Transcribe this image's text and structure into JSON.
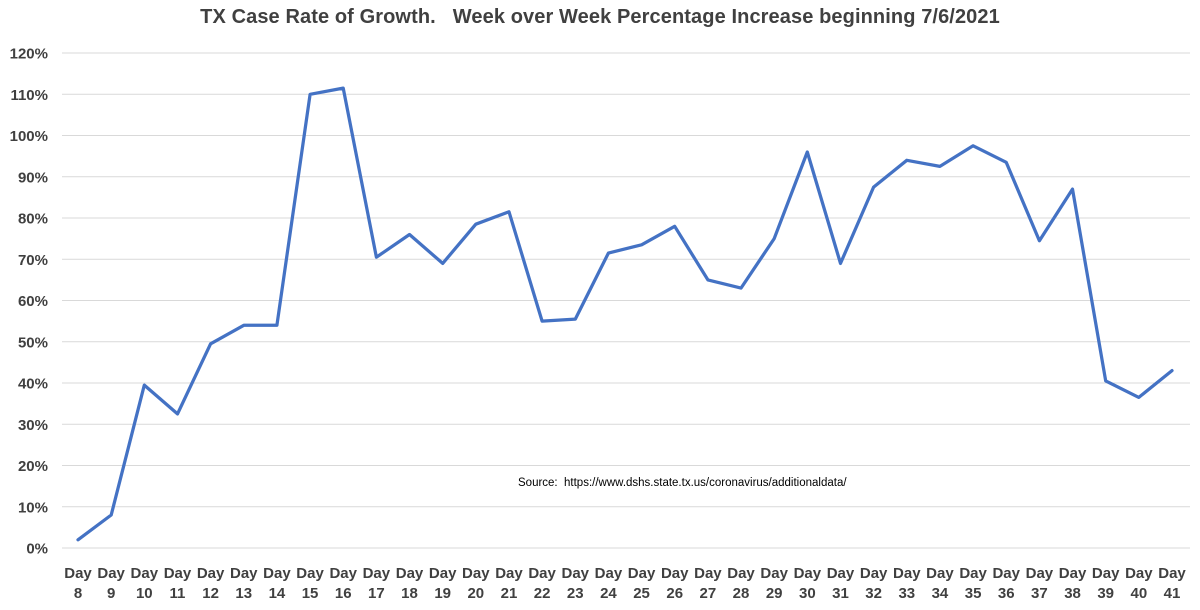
{
  "chart_data": {
    "type": "line",
    "title": "TX Case Rate of Growth.   Week over Week Percentage Increase beginning 7/6/2021",
    "source_note": "Source:  https://www.dshs.state.tx.us/coronavirus/additionaldata/",
    "x_label_prefix": "Day",
    "days": [
      8,
      9,
      10,
      11,
      12,
      13,
      14,
      15,
      16,
      17,
      18,
      19,
      20,
      21,
      22,
      23,
      24,
      25,
      26,
      27,
      28,
      29,
      30,
      31,
      32,
      33,
      34,
      35,
      36,
      37,
      38,
      39,
      40,
      41
    ],
    "values": [
      2,
      8,
      39.5,
      32.5,
      49.5,
      54,
      54,
      110,
      111.5,
      70.5,
      76,
      69,
      78.5,
      81.5,
      55,
      55.5,
      71.5,
      73.5,
      78,
      65,
      63,
      75,
      96,
      69,
      87.5,
      94,
      92.5,
      97.5,
      93.5,
      74.5,
      87,
      40.5,
      36.5,
      43
    ],
    "ylim": [
      0,
      120
    ],
    "ytick_step": 10,
    "ytick_suffix": "%",
    "grid": true,
    "legend": "none",
    "line_color": "#4472C4",
    "grid_color": "#D9D9D9",
    "label_color": "#404040",
    "background_color": "#FFFFFF"
  }
}
